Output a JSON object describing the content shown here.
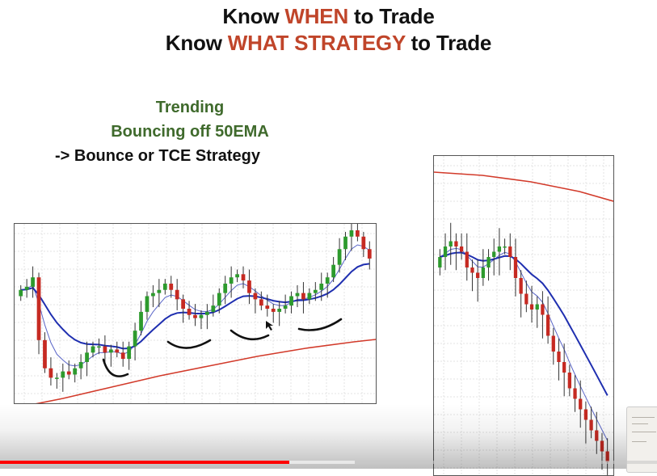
{
  "slide": {
    "title_line1": {
      "pre": "Know ",
      "accent": "WHEN",
      "post": " to Trade"
    },
    "title_line2": {
      "pre": "Know ",
      "accent": "WHAT STRATEGY",
      "post": " to Trade"
    },
    "accent_color": "#c0452a",
    "notes": {
      "line1": "Trending",
      "line2": "Bouncing off 50EMA",
      "line3": "-> Bounce or TCE Strategy",
      "color": "#3f6a2c"
    }
  },
  "colors": {
    "bull": "#2d9a2d",
    "bear": "#c62a22",
    "ema_50": "#1f2fb0",
    "ema_fast": "#5a66c8",
    "ema_200": "#d23a2a",
    "grid": "#e3e3e3"
  },
  "chart_data": [
    {
      "type": "candlestick",
      "name": "",
      "trend": "up",
      "closes": [
        62,
        64,
        70,
        30,
        12,
        6,
        6,
        10,
        8,
        12,
        16,
        22,
        26,
        26,
        22,
        24,
        22,
        18,
        26,
        36,
        48,
        58,
        60,
        62,
        66,
        62,
        56,
        50,
        46,
        44,
        46,
        48,
        52,
        60,
        66,
        70,
        72,
        68,
        60,
        56,
        52,
        50,
        48,
        50,
        52,
        58,
        60,
        56,
        60,
        62,
        66,
        70,
        78,
        88,
        96,
        100,
        96,
        88,
        82
      ],
      "annotations": [
        "bounce-1",
        "bounce-2",
        "bounce-3",
        "bounce-4"
      ]
    },
    {
      "type": "candlestick",
      "name": "",
      "trend": "down",
      "closes": [
        80,
        84,
        86,
        84,
        82,
        76,
        74,
        72,
        76,
        80,
        82,
        84,
        84,
        80,
        72,
        66,
        62,
        60,
        62,
        58,
        50,
        44,
        40,
        36,
        30,
        26,
        22,
        18,
        14,
        10,
        6,
        2
      ]
    }
  ],
  "player": {
    "progress_pct": 44,
    "buffered_pct": 54,
    "progress_color": "#ff0000"
  }
}
